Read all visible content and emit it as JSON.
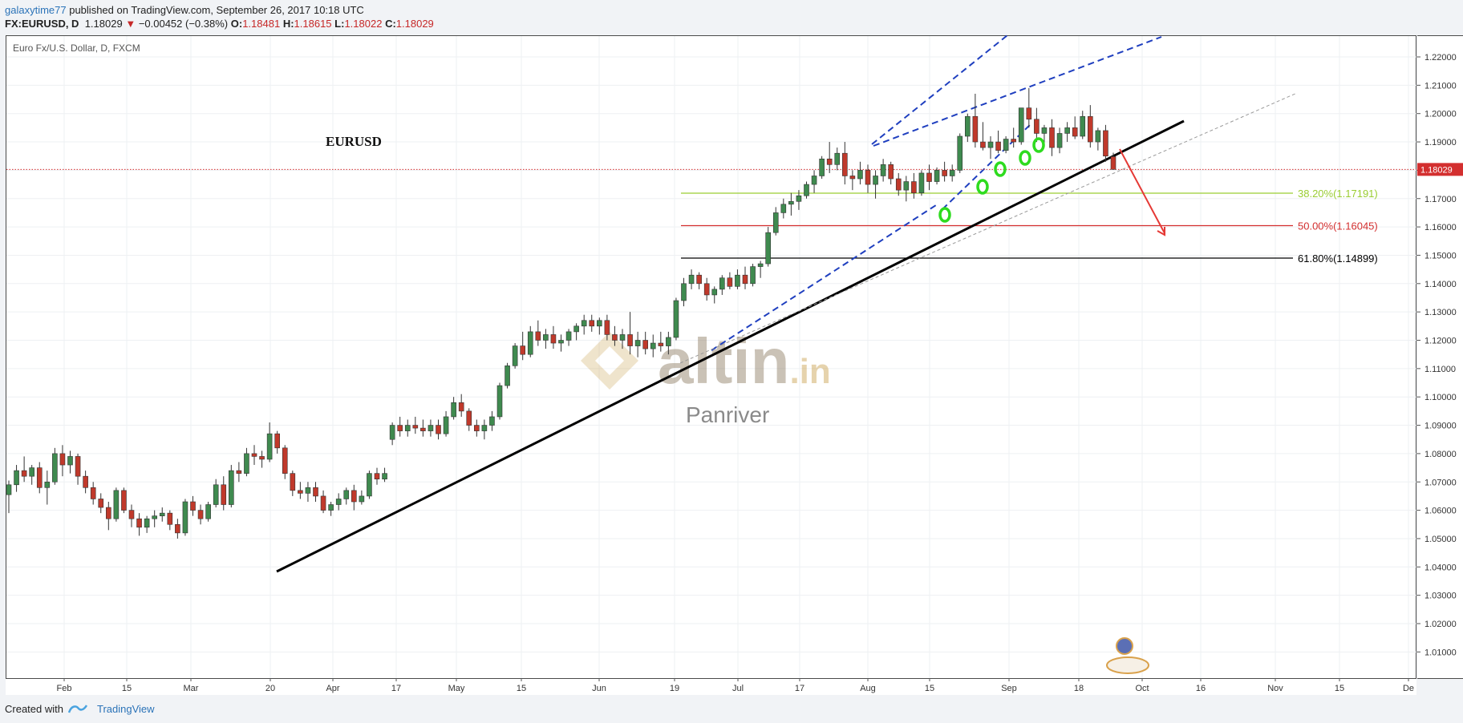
{
  "header": {
    "author": "galaxytime77",
    "published": " published on TradingView.com, September 26, 2017 10:18 UTC",
    "symbol": "FX:EURUSD, D",
    "last": "1.18029",
    "change": "−0.00452 (−0.38%)",
    "o_label": "O:",
    "o": "1.18481",
    "h_label": "H:",
    "h": "1.18615",
    "l_label": "L:",
    "l": "1.18022",
    "c_label": "C:",
    "c": "1.18029"
  },
  "footer": {
    "created_with": "Created with",
    "brand": "TradingView"
  },
  "colors": {
    "up": "#3f8a4f",
    "down": "#c0392b",
    "trendline": "#000000",
    "channel": "#1f3fbf",
    "fib382": "#9acd32",
    "fib50": "#d32f2f",
    "fib618": "#000000",
    "arrow": "#e53935",
    "marker": "#2edb1f",
    "price_label_bg": "#d32f2f"
  },
  "chart_data": {
    "type": "candlestick",
    "title": "Euro Fx/U.S. Dollar, D, FXCM",
    "annotation": "EURUSD",
    "watermark_brand": "altin.in",
    "watermark_sub": "Panriver",
    "ylim": [
      1.0,
      1.226
    ],
    "y_ticks": [
      "1.22000",
      "1.21000",
      "1.20000",
      "1.19000",
      "1.18000",
      "1.17000",
      "1.16000",
      "1.15000",
      "1.14000",
      "1.13000",
      "1.12000",
      "1.11000",
      "1.10000",
      "1.09000",
      "1.08000",
      "1.07000",
      "1.06000",
      "1.05000",
      "1.04000",
      "1.03000",
      "1.02000",
      "1.01000"
    ],
    "x_ticks": [
      "Feb",
      "15",
      "Mar",
      "20",
      "Apr",
      "17",
      "May",
      "15",
      "Jun",
      "19",
      "Jul",
      "17",
      "Aug",
      "15",
      "Sep",
      "18",
      "Oct",
      "16",
      "Nov",
      "15",
      "De"
    ],
    "current_price_label": "1.18029",
    "fib_levels": [
      {
        "label": "38.20%(1.17191)",
        "value": 1.17191
      },
      {
        "label": "50.00%(1.16045)",
        "value": 1.16045
      },
      {
        "label": "61.80%(1.14899)",
        "value": 1.14899
      }
    ],
    "candles": [
      [
        1.0655,
        1.0705,
        1.059,
        1.069
      ],
      [
        1.069,
        1.076,
        1.0665,
        1.074
      ],
      [
        1.074,
        1.079,
        1.07,
        1.072
      ],
      [
        1.072,
        1.076,
        1.069,
        1.075
      ],
      [
        1.075,
        1.077,
        1.066,
        1.068
      ],
      [
        1.068,
        1.074,
        1.062,
        1.07
      ],
      [
        1.07,
        1.082,
        1.069,
        1.08
      ],
      [
        1.08,
        1.083,
        1.072,
        1.076
      ],
      [
        1.076,
        1.081,
        1.073,
        1.079
      ],
      [
        1.079,
        1.08,
        1.069,
        1.072
      ],
      [
        1.072,
        1.074,
        1.066,
        1.068
      ],
      [
        1.068,
        1.07,
        1.062,
        1.064
      ],
      [
        1.064,
        1.066,
        1.059,
        1.061
      ],
      [
        1.061,
        1.063,
        1.053,
        1.057
      ],
      [
        1.057,
        1.068,
        1.056,
        1.067
      ],
      [
        1.067,
        1.068,
        1.059,
        1.06
      ],
      [
        1.06,
        1.062,
        1.054,
        1.057
      ],
      [
        1.057,
        1.059,
        1.051,
        1.054
      ],
      [
        1.054,
        1.058,
        1.052,
        1.057
      ],
      [
        1.057,
        1.06,
        1.054,
        1.058
      ],
      [
        1.058,
        1.061,
        1.056,
        1.059
      ],
      [
        1.059,
        1.06,
        1.053,
        1.055
      ],
      [
        1.055,
        1.057,
        1.05,
        1.052
      ],
      [
        1.052,
        1.064,
        1.051,
        1.063
      ],
      [
        1.063,
        1.065,
        1.058,
        1.06
      ],
      [
        1.06,
        1.062,
        1.055,
        1.057
      ],
      [
        1.057,
        1.063,
        1.056,
        1.062
      ],
      [
        1.062,
        1.071,
        1.061,
        1.069
      ],
      [
        1.069,
        1.072,
        1.06,
        1.062
      ],
      [
        1.062,
        1.076,
        1.061,
        1.074
      ],
      [
        1.074,
        1.077,
        1.07,
        1.073
      ],
      [
        1.073,
        1.082,
        1.072,
        1.08
      ],
      [
        1.08,
        1.083,
        1.076,
        1.079
      ],
      [
        1.079,
        1.081,
        1.075,
        1.078
      ],
      [
        1.078,
        1.091,
        1.077,
        1.087
      ],
      [
        1.087,
        1.088,
        1.08,
        1.082
      ],
      [
        1.082,
        1.083,
        1.071,
        1.073
      ],
      [
        1.073,
        1.074,
        1.065,
        1.067
      ],
      [
        1.067,
        1.07,
        1.064,
        1.066
      ],
      [
        1.066,
        1.07,
        1.063,
        1.068
      ],
      [
        1.068,
        1.07,
        1.063,
        1.065
      ],
      [
        1.065,
        1.067,
        1.059,
        1.06
      ],
      [
        1.06,
        1.063,
        1.058,
        1.062
      ],
      [
        1.062,
        1.066,
        1.06,
        1.064
      ],
      [
        1.064,
        1.068,
        1.062,
        1.067
      ],
      [
        1.067,
        1.069,
        1.06,
        1.063
      ],
      [
        1.063,
        1.067,
        1.062,
        1.065
      ],
      [
        1.065,
        1.074,
        1.064,
        1.073
      ],
      [
        1.073,
        1.075,
        1.069,
        1.071
      ],
      [
        1.071,
        1.075,
        1.07,
        1.073
      ],
      [
        1.085,
        1.091,
        1.083,
        1.09
      ],
      [
        1.09,
        1.093,
        1.086,
        1.088
      ],
      [
        1.088,
        1.092,
        1.086,
        1.09
      ],
      [
        1.09,
        1.093,
        1.087,
        1.089
      ],
      [
        1.089,
        1.092,
        1.086,
        1.088
      ],
      [
        1.088,
        1.092,
        1.086,
        1.09
      ],
      [
        1.09,
        1.092,
        1.085,
        1.087
      ],
      [
        1.087,
        1.095,
        1.086,
        1.093
      ],
      [
        1.093,
        1.1,
        1.092,
        1.098
      ],
      [
        1.098,
        1.101,
        1.093,
        1.095
      ],
      [
        1.095,
        1.096,
        1.088,
        1.09
      ],
      [
        1.09,
        1.092,
        1.086,
        1.088
      ],
      [
        1.088,
        1.092,
        1.085,
        1.09
      ],
      [
        1.09,
        1.095,
        1.088,
        1.093
      ],
      [
        1.093,
        1.105,
        1.092,
        1.104
      ],
      [
        1.104,
        1.112,
        1.103,
        1.111
      ],
      [
        1.111,
        1.119,
        1.11,
        1.118
      ],
      [
        1.118,
        1.123,
        1.113,
        1.115
      ],
      [
        1.115,
        1.125,
        1.114,
        1.123
      ],
      [
        1.123,
        1.127,
        1.118,
        1.12
      ],
      [
        1.12,
        1.124,
        1.117,
        1.122
      ],
      [
        1.122,
        1.125,
        1.117,
        1.119
      ],
      [
        1.119,
        1.122,
        1.116,
        1.12
      ],
      [
        1.12,
        1.124,
        1.118,
        1.123
      ],
      [
        1.123,
        1.126,
        1.12,
        1.125
      ],
      [
        1.125,
        1.129,
        1.122,
        1.127
      ],
      [
        1.127,
        1.129,
        1.123,
        1.125
      ],
      [
        1.125,
        1.128,
        1.122,
        1.127
      ],
      [
        1.127,
        1.129,
        1.12,
        1.122
      ],
      [
        1.122,
        1.125,
        1.118,
        1.12
      ],
      [
        1.12,
        1.124,
        1.117,
        1.122
      ],
      [
        1.122,
        1.13,
        1.115,
        1.118
      ],
      [
        1.118,
        1.123,
        1.114,
        1.12
      ],
      [
        1.12,
        1.123,
        1.115,
        1.117
      ],
      [
        1.117,
        1.122,
        1.114,
        1.119
      ],
      [
        1.119,
        1.123,
        1.116,
        1.118
      ],
      [
        1.118,
        1.123,
        1.115,
        1.121
      ],
      [
        1.121,
        1.135,
        1.12,
        1.134
      ],
      [
        1.134,
        1.142,
        1.132,
        1.14
      ],
      [
        1.14,
        1.145,
        1.138,
        1.143
      ],
      [
        1.143,
        1.144,
        1.138,
        1.14
      ],
      [
        1.14,
        1.142,
        1.134,
        1.136
      ],
      [
        1.136,
        1.139,
        1.133,
        1.138
      ],
      [
        1.138,
        1.143,
        1.136,
        1.142
      ],
      [
        1.142,
        1.144,
        1.138,
        1.139
      ],
      [
        1.139,
        1.145,
        1.138,
        1.143
      ],
      [
        1.143,
        1.146,
        1.138,
        1.14
      ],
      [
        1.14,
        1.147,
        1.139,
        1.146
      ],
      [
        1.146,
        1.148,
        1.142,
        1.147
      ],
      [
        1.147,
        1.16,
        1.146,
        1.158
      ],
      [
        1.158,
        1.167,
        1.157,
        1.165
      ],
      [
        1.165,
        1.17,
        1.163,
        1.168
      ],
      [
        1.168,
        1.172,
        1.164,
        1.169
      ],
      [
        1.169,
        1.173,
        1.166,
        1.171
      ],
      [
        1.171,
        1.176,
        1.17,
        1.175
      ],
      [
        1.175,
        1.18,
        1.172,
        1.178
      ],
      [
        1.178,
        1.185,
        1.177,
        1.184
      ],
      [
        1.184,
        1.19,
        1.179,
        1.182
      ],
      [
        1.182,
        1.188,
        1.18,
        1.186
      ],
      [
        1.186,
        1.19,
        1.175,
        1.178
      ],
      [
        1.178,
        1.18,
        1.173,
        1.177
      ],
      [
        1.177,
        1.183,
        1.175,
        1.18
      ],
      [
        1.18,
        1.182,
        1.172,
        1.175
      ],
      [
        1.175,
        1.18,
        1.17,
        1.178
      ],
      [
        1.178,
        1.184,
        1.176,
        1.182
      ],
      [
        1.182,
        1.183,
        1.175,
        1.177
      ],
      [
        1.177,
        1.179,
        1.171,
        1.173
      ],
      [
        1.173,
        1.178,
        1.169,
        1.176
      ],
      [
        1.176,
        1.179,
        1.17,
        1.172
      ],
      [
        1.172,
        1.18,
        1.171,
        1.179
      ],
      [
        1.179,
        1.182,
        1.173,
        1.176
      ],
      [
        1.176,
        1.181,
        1.175,
        1.18
      ],
      [
        1.18,
        1.183,
        1.176,
        1.178
      ],
      [
        1.178,
        1.182,
        1.176,
        1.18
      ],
      [
        1.18,
        1.193,
        1.179,
        1.192
      ],
      [
        1.192,
        1.2,
        1.19,
        1.199
      ],
      [
        1.199,
        1.207,
        1.188,
        1.19
      ],
      [
        1.19,
        1.197,
        1.187,
        1.188
      ],
      [
        1.188,
        1.192,
        1.184,
        1.19
      ],
      [
        1.19,
        1.194,
        1.186,
        1.187
      ],
      [
        1.187,
        1.192,
        1.186,
        1.191
      ],
      [
        1.191,
        1.195,
        1.188,
        1.19
      ],
      [
        1.19,
        1.201,
        1.189,
        1.202
      ],
      [
        1.202,
        1.209,
        1.195,
        1.198
      ],
      [
        1.198,
        1.202,
        1.19,
        1.193
      ],
      [
        1.193,
        1.196,
        1.189,
        1.195
      ],
      [
        1.195,
        1.198,
        1.185,
        1.188
      ],
      [
        1.188,
        1.195,
        1.186,
        1.193
      ],
      [
        1.193,
        1.197,
        1.19,
        1.195
      ],
      [
        1.195,
        1.199,
        1.191,
        1.192
      ],
      [
        1.192,
        1.201,
        1.191,
        1.199
      ],
      [
        1.199,
        1.203,
        1.188,
        1.19
      ],
      [
        1.19,
        1.195,
        1.187,
        1.194
      ],
      [
        1.194,
        1.196,
        1.183,
        1.185
      ],
      [
        1.1848,
        1.1862,
        1.1802,
        1.1803
      ]
    ]
  }
}
